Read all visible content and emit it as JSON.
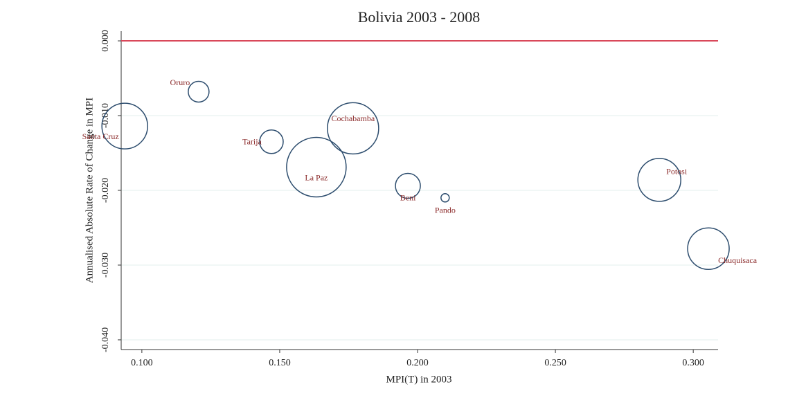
{
  "chart_data": {
    "type": "scatter",
    "title": "Bolivia 2003 - 2008",
    "x_label": "MPI(T) in 2003",
    "y_label": "Annualised Absolute Rate of Change in MPI",
    "labels": [
      "Santa Cruz",
      "Oruro",
      "Tarija",
      "La Paz",
      "Cochabamba",
      "Beni",
      "Pando",
      "Potosi",
      "Chuquisaca"
    ],
    "x": [
      0.0938,
      0.1206,
      0.147,
      0.1633,
      0.1766,
      0.1965,
      0.21,
      0.2877,
      0.3055
    ],
    "values": [
      -0.0114,
      -0.0068,
      -0.0135,
      -0.0169,
      -0.0117,
      -0.0194,
      -0.021,
      -0.0186,
      -0.0278
    ],
    "sizes": [
      1089,
      225,
      289,
      1849,
      1369,
      324,
      36,
      961,
      900
    ],
    "color": "#2d4d6e",
    "label_color": "#8b2a2a",
    "reference_line": {
      "value": 0,
      "color": "#d9485a"
    },
    "xlim": [
      0.0925,
      0.309
    ],
    "ylim": [
      -0.0413,
      0.0013
    ],
    "xticks": [
      {
        "value": 0.1,
        "label": "0.100"
      },
      {
        "value": 0.15,
        "label": "0.150"
      },
      {
        "value": 0.2,
        "label": "0.200"
      },
      {
        "value": 0.25,
        "label": "0.250"
      },
      {
        "value": 0.3,
        "label": "0.300"
      }
    ],
    "yticks": [
      {
        "value": 0,
        "label": "0.000"
      },
      {
        "value": -0.01,
        "label": "-0.010"
      },
      {
        "value": -0.02,
        "label": "-0.020"
      },
      {
        "value": -0.03,
        "label": "-0.030"
      },
      {
        "value": -0.04,
        "label": "-0.040"
      }
    ],
    "grid": true
  }
}
